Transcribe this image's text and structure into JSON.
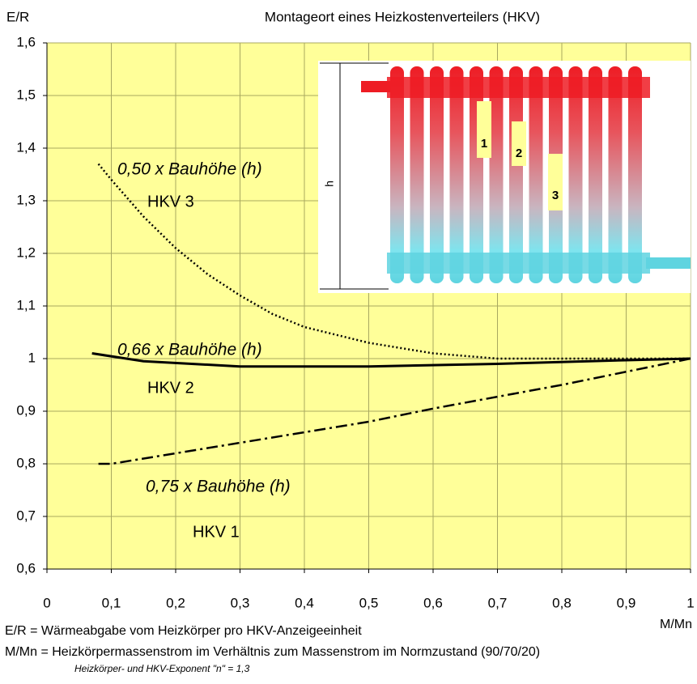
{
  "chart_data": {
    "type": "line",
    "title": "Montageort eines Heizkostenverteilers (HKV)",
    "y_label": "E/R",
    "x_label": "M/Mn",
    "xlim": [
      0,
      1
    ],
    "ylim": [
      0.6,
      1.6
    ],
    "xticks": [
      0,
      {
        "value": 0.1,
        "label": "0,1"
      },
      {
        "value": 0.2,
        "label": "0,2"
      },
      {
        "value": 0.3,
        "label": "0,3"
      },
      {
        "value": 0.4,
        "label": "0,4"
      },
      {
        "value": 0.5,
        "label": "0,5"
      },
      {
        "value": 0.6,
        "label": "0,6"
      },
      {
        "value": 0.7,
        "label": "0,7"
      },
      {
        "value": 0.8,
        "label": "0,8"
      },
      {
        "value": 0.9,
        "label": "0,9"
      },
      1
    ],
    "yticks": [
      {
        "value": 0.6,
        "label": "0,6"
      },
      {
        "value": 0.7,
        "label": "0,7"
      },
      {
        "value": 0.8,
        "label": "0,8"
      },
      {
        "value": 0.9,
        "label": "0,9"
      },
      1,
      {
        "value": 1.1,
        "label": "1,1"
      },
      {
        "value": 1.2,
        "label": "1,2"
      },
      {
        "value": 1.3,
        "label": "1,3"
      },
      {
        "value": 1.4,
        "label": "1,4"
      },
      {
        "value": 1.5,
        "label": "1,5"
      },
      {
        "value": 1.6,
        "label": "1,6"
      }
    ],
    "grid": true,
    "background": "#ffff99",
    "series": [
      {
        "name": "HKV 3",
        "color": "#000000",
        "style": "dotted",
        "x": [
          0.08,
          0.1,
          0.15,
          0.2,
          0.25,
          0.3,
          0.35,
          0.4,
          0.5,
          0.6,
          0.7,
          0.8,
          1.0
        ],
        "values": [
          1.37,
          1.34,
          1.27,
          1.21,
          1.16,
          1.12,
          1.085,
          1.06,
          1.03,
          1.01,
          1.0,
          1.0,
          1.0
        ]
      },
      {
        "name": "HKV 2",
        "color": "#000000",
        "style": "solid",
        "x": [
          0.07,
          0.15,
          0.3,
          0.5,
          0.7,
          0.9,
          1.0
        ],
        "values": [
          1.01,
          0.995,
          0.985,
          0.985,
          0.99,
          0.997,
          1.0
        ]
      },
      {
        "name": "HKV 1",
        "color": "#000000",
        "style": "dashdot",
        "x": [
          0.08,
          0.1,
          0.3,
          0.5,
          0.6,
          0.8,
          1.0
        ],
        "values": [
          0.8,
          0.8,
          0.84,
          0.88,
          0.905,
          0.95,
          1.0
        ]
      }
    ],
    "annotations": [
      "0,50 x Bauhöhe (h)",
      "0,66 x Bauhöhe (h)",
      "0,75 x Bauhöhe (h)"
    ],
    "inset_labels": [
      "h",
      "1",
      "2",
      "3"
    ],
    "footnotes": [
      "E/R    =  Wärmeabgabe vom Heizkörper pro HKV-Anzeigeeinheit",
      "M/Mn =  Heizkörpermassenstrom im Verhältnis zum Massenstrom im Normzustand (90/70/20)",
      "Heizkörper- und HKV-Exponent \"n\" = 1,3"
    ]
  }
}
